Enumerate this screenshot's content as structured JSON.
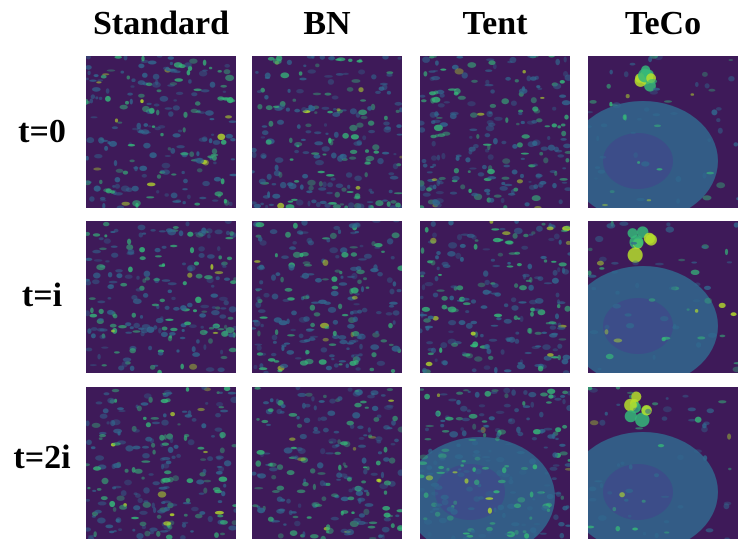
{
  "columns": [
    "Standard",
    "BN",
    "Tent",
    "TeCo"
  ],
  "rows": [
    "t=0",
    "t=i",
    "t=2i"
  ],
  "colors": {
    "base": "#3e1a59",
    "mid": "#31688e",
    "teal": "#35b779",
    "hi": "#b5de2b"
  }
}
